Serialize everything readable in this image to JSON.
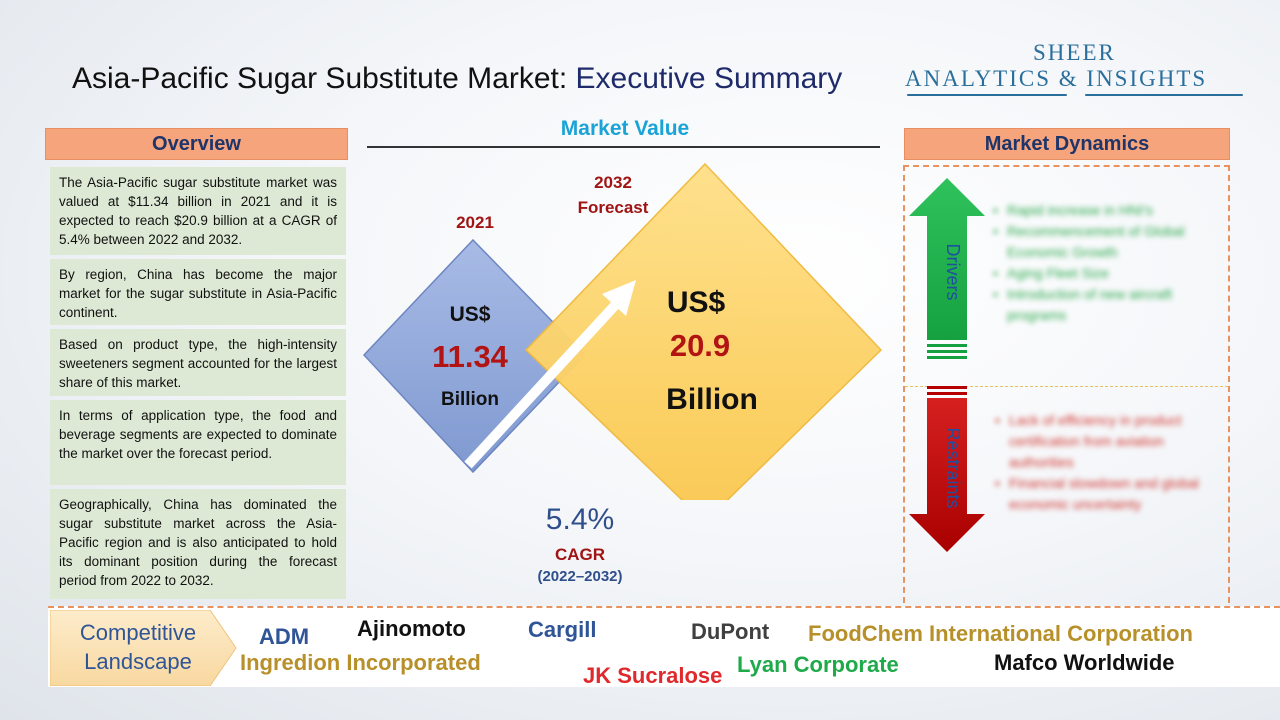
{
  "title": {
    "main": "Asia-Pacific Sugar Substitute Market: ",
    "highlight": "Executive Summary"
  },
  "logo": {
    "line1": "SHEER",
    "line2": "ANALYTICS & INSIGHTS"
  },
  "overview": {
    "heading": "Overview",
    "paragraphs": [
      "The Asia-Pacific sugar substitute market was valued at $11.34 billion in 2021 and it is expected to reach $20.9 billion at a CAGR of 5.4% between 2022 and 2032.",
      "By region, China has become the major market for the sugar substitute in Asia-Pacific continent.",
      "Based on product type, the high-intensity sweeteners segment accounted for the largest share of this market.",
      "In terms of application type, the food and beverage segments are expected to dominate the market over the forecast period.",
      "Geographically, China has dominated the sugar substitute market across the Asia-Pacific region and is also anticipated to hold its dominant position during the forecast period from 2022 to 2032."
    ]
  },
  "market_value": {
    "heading": "Market Value",
    "year_2021": "2021",
    "year_2032": "2032",
    "forecast": "Forecast",
    "value_2021": {
      "currency": "US$",
      "amount": "11.34",
      "unit": "Billion"
    },
    "value_2032": {
      "currency": "US$",
      "amount": "20.9",
      "unit": "Billion"
    },
    "cagr": {
      "value": "5.4%",
      "label": "CAGR",
      "period": "(2022–2032)"
    }
  },
  "dynamics": {
    "heading": "Market Dynamics",
    "drivers_label": "Drivers",
    "restraints_label": "Restraints",
    "drivers": [
      "Rapid increase in HNI's",
      "Recommencement of Global Economic Growth",
      "Aging Fleet Size",
      "Introduction of new aircraft programs"
    ],
    "restraints": [
      "Lack of efficiency in product certification from aviation authorities",
      "Financial slowdown and global economic uncertainty"
    ]
  },
  "competitive": {
    "label_line1": "Competitive",
    "label_line2": "Landscape",
    "companies": [
      {
        "name": "ADM",
        "color": "#2f5597"
      },
      {
        "name": "Ajinomoto",
        "color": "#111111"
      },
      {
        "name": "Cargill",
        "color": "#2f5597"
      },
      {
        "name": "DuPont",
        "color": "#404040"
      },
      {
        "name": "FoodChem International Corporation",
        "color": "#b8902a"
      },
      {
        "name": "Ingredion Incorporated",
        "color": "#b8902a"
      },
      {
        "name": "JK Sucralose",
        "color": "#e0292c"
      },
      {
        "name": "Lyan Corporate",
        "color": "#1faa4a"
      },
      {
        "name": "Mafco Worldwide",
        "color": "#111111"
      }
    ]
  },
  "colors": {
    "header_orange": "#f6a47c",
    "overview_green": "#dde9d5",
    "diamond_blue": "#8fa7d8",
    "diamond_yellow": "#fcd36d",
    "driver_green": "#1fae4b",
    "restraint_red": "#c00000"
  }
}
